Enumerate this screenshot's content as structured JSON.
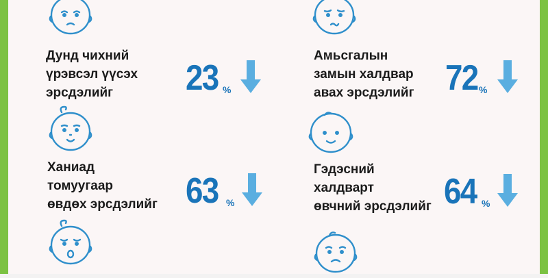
{
  "colors": {
    "frame": "#7cc242",
    "accent": "#1a74b9",
    "arrow": "#5aaee0",
    "text": "#1b1b1b",
    "face_outline": "#2f8fcb"
  },
  "stats": [
    {
      "label_lines": [
        "Дунд чихний",
        "үрэвсэл үүсэх",
        "эрсдэлийг"
      ],
      "percent": "23",
      "symbol": "%",
      "icon": "sad-baby-face-icon",
      "trend": "down-arrow-icon"
    },
    {
      "label_lines": [
        "Амьсгалын",
        "замын халдвар",
        "авах эрсдэлийг"
      ],
      "percent": "72",
      "symbol": "%",
      "icon": "worried-baby-face-icon",
      "trend": "down-arrow-icon"
    },
    {
      "label_lines": [
        "Ханиад",
        "томуугаар",
        "өвдөх эрсдэлийг"
      ],
      "percent": "63",
      "symbol": "%",
      "icon": "happy-baby-face-icon",
      "trend": "down-arrow-icon"
    },
    {
      "label_lines": [
        "Гэдэсний",
        "халдварт",
        "өвчний эрсдэлийг"
      ],
      "percent": "64",
      "symbol": "%",
      "icon": "smiling-baby-face-icon",
      "trend": "down-arrow-icon"
    }
  ],
  "extra_icons": [
    "crying-baby-face-icon",
    "sad-baby-face-icon"
  ]
}
